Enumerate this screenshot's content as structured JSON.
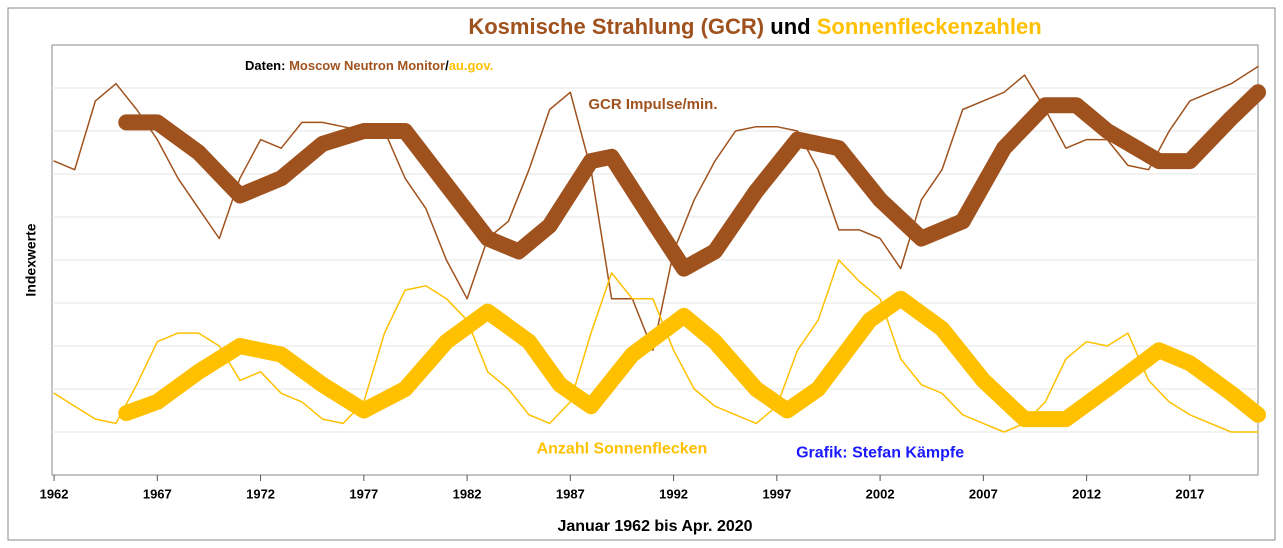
{
  "chart_data": {
    "type": "line",
    "title_parts": [
      {
        "text": "Kosmische Strahlung (GCR)",
        "color": "#a0521e"
      },
      {
        "text": "und",
        "color": "#000000"
      },
      {
        "text": "Sonnenfleckenzahlen",
        "color": "#ffc000"
      }
    ],
    "subtitle_parts": [
      {
        "text": "Daten:",
        "color": "#000000"
      },
      {
        "text": "Moscow Neutron Monitor",
        "color": "#a0521e"
      },
      {
        "text": "/",
        "color": "#000000"
      },
      {
        "text": "au.gov.",
        "color": "#ffc000"
      }
    ],
    "annotations": [
      {
        "text": "GCR Impulse/min.",
        "color": "#a0521e",
        "x": 1991,
        "y": 86
      },
      {
        "text": "Anzahl Sonnenflecken",
        "color": "#ffc000",
        "x": 1989.5,
        "y": 6
      },
      {
        "text": "Grafik: Stefan Kämpfe",
        "color": "#1a1aff",
        "x": 2002,
        "y": 5
      }
    ],
    "ylabel": "Indexwerte",
    "xlabel": "Januar 1962 bis Apr. 2020",
    "xlim": [
      1961.9,
      2020.3
    ],
    "ylim": [
      0,
      100
    ],
    "xticks": [
      1962,
      1967,
      1972,
      1977,
      1982,
      1987,
      1992,
      1997,
      2002,
      2007,
      2012,
      2017
    ],
    "grid": true,
    "series": [
      {
        "color": "#a0521e",
        "width": 1.5,
        "x": [
          1962,
          1963,
          1964,
          1965,
          1966,
          1967,
          1968,
          1969,
          1970,
          1971,
          1972,
          1973,
          1974,
          1975,
          1976,
          1977,
          1978,
          1979,
          1980,
          1981,
          1982,
          1983,
          1984,
          1985,
          1986,
          1987,
          1988,
          1989,
          1990,
          1991,
          1992,
          1993,
          1994,
          1995,
          1996,
          1997,
          1998,
          1999,
          2000,
          2001,
          2002,
          2003,
          2004,
          2005,
          2006,
          2007,
          2008,
          2009,
          2010,
          2011,
          2012,
          2013,
          2014,
          2015,
          2016,
          2017,
          2018,
          2019,
          2020.3
        ],
        "values": [
          73,
          71,
          87,
          91,
          85,
          78,
          69,
          62,
          55,
          69,
          78,
          76,
          82,
          82,
          81,
          80,
          80,
          69,
          62,
          50,
          41,
          55,
          59,
          71,
          85,
          89,
          71,
          41,
          41,
          29,
          52,
          64,
          73,
          80,
          81,
          81,
          80,
          71,
          57,
          57,
          55,
          48,
          64,
          71,
          85,
          87,
          89,
          93,
          85,
          76,
          78,
          78,
          72,
          71,
          80,
          87,
          89,
          91,
          95
        ]
      },
      {
        "color": "#ffc000",
        "width": 1.5,
        "x": [
          1962,
          1963,
          1964,
          1965,
          1966,
          1967,
          1968,
          1969,
          1970,
          1971,
          1972,
          1973,
          1974,
          1975,
          1976,
          1977,
          1978,
          1979,
          1980,
          1981,
          1982,
          1983,
          1984,
          1985,
          1986,
          1987,
          1988,
          1989,
          1990,
          1991,
          1992,
          1993,
          1994,
          1995,
          1996,
          1997,
          1998,
          1999,
          2000,
          2001,
          2002,
          2003,
          2004,
          2005,
          2006,
          2007,
          2008,
          2009,
          2010,
          2011,
          2012,
          2013,
          2014,
          2015,
          2016,
          2017,
          2018,
          2019,
          2020.3
        ],
        "values": [
          19,
          16,
          13,
          12,
          21,
          31,
          33,
          33,
          30,
          22,
          24,
          19,
          17,
          13,
          12,
          17,
          33,
          43,
          44,
          41,
          36,
          24,
          20,
          14,
          12,
          17,
          33,
          47,
          41,
          41,
          29,
          20,
          16,
          14,
          12,
          16,
          29,
          36,
          50,
          45,
          41,
          27,
          21,
          19,
          14,
          12,
          10,
          12,
          17,
          27,
          31,
          30,
          33,
          22,
          17,
          14,
          12,
          10,
          10
        ]
      },
      {
        "color": "#a0521e",
        "width": 16,
        "x": [
          1965.5,
          1967,
          1969,
          1971,
          1973,
          1975,
          1977,
          1979,
          1981,
          1983,
          1984.5,
          1986,
          1988,
          1989,
          1991,
          1992.5,
          1994,
          1996,
          1998,
          2000,
          2002,
          2004,
          2006,
          2008,
          2010,
          2011.5,
          2013,
          2015.5,
          2017,
          2019,
          2020.3
        ],
        "values": [
          82,
          82,
          75,
          65,
          69,
          77,
          80,
          80,
          67.5,
          55,
          52,
          58,
          73,
          74,
          59,
          48,
          52,
          66,
          78,
          76,
          64,
          55,
          59,
          76,
          86,
          86,
          80,
          73,
          73,
          83,
          89
        ]
      },
      {
        "color": "#ffc000",
        "width": 16,
        "x": [
          1965.5,
          1967,
          1969,
          1971,
          1973,
          1975,
          1977,
          1979,
          1981,
          1983,
          1985,
          1986.5,
          1988,
          1990,
          1992.5,
          1994,
          1996,
          1997.5,
          1999,
          2001.5,
          2003,
          2005,
          2007,
          2009,
          2011,
          2013,
          2015.5,
          2017,
          2019,
          2020.3
        ],
        "values": [
          14.4,
          17,
          24,
          30,
          28,
          21,
          15,
          20,
          31,
          38,
          31,
          21,
          16,
          28,
          37,
          31,
          20,
          15,
          20,
          36,
          41,
          34,
          22,
          13,
          13,
          20,
          29,
          26,
          19,
          14
        ]
      }
    ]
  }
}
